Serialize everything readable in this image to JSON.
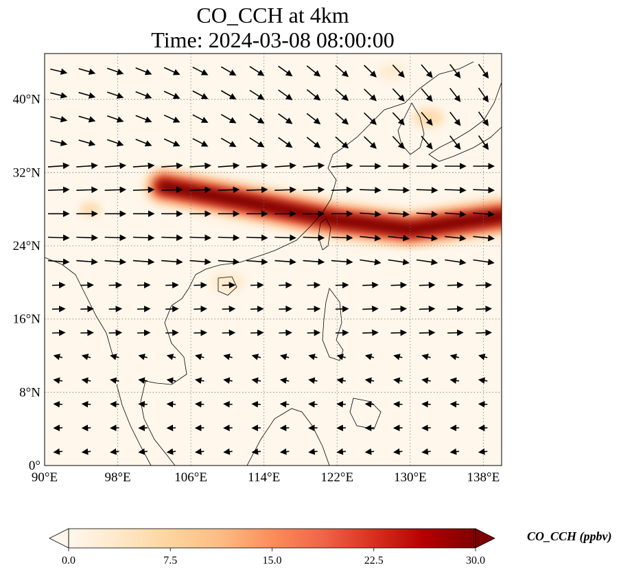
{
  "title": {
    "line1": "CO_CCH at 4km",
    "line2": "Time: 2024-03-08 08:00:00"
  },
  "map": {
    "lon_range": [
      90,
      140
    ],
    "lat_range": [
      0,
      45
    ],
    "lon_ticks": [
      {
        "value": 90,
        "label": "90°E"
      },
      {
        "value": 98,
        "label": "98°E"
      },
      {
        "value": 106,
        "label": "106°E"
      },
      {
        "value": 114,
        "label": "114°E"
      },
      {
        "value": 122,
        "label": "122°E"
      },
      {
        "value": 130,
        "label": "130°E"
      },
      {
        "value": 138,
        "label": "138°E"
      }
    ],
    "lat_ticks": [
      {
        "value": 0,
        "label": "0°"
      },
      {
        "value": 8,
        "label": "8°N"
      },
      {
        "value": 16,
        "label": "16°N"
      },
      {
        "value": 24,
        "label": "24°N"
      },
      {
        "value": 32,
        "label": "32°N"
      },
      {
        "value": 40,
        "label": "40°N"
      }
    ],
    "gridlines": "dotted",
    "plume": {
      "description_axis": [
        [
          103,
          30.5
        ],
        [
          112,
          28.8
        ],
        [
          122,
          26.8
        ],
        [
          130,
          25.8
        ],
        [
          140,
          27.2
        ]
      ],
      "peak_ppbv": 30
    }
  },
  "colorbar": {
    "label": "CO_CCH (ppbv)",
    "min": 0.0,
    "max": 30.0,
    "ticks": [
      "0.0",
      "7.5",
      "15.0",
      "22.5",
      "30.0"
    ],
    "colormap": "OrRd",
    "extend": "both",
    "colors": [
      "#fff7ec",
      "#fee8c8",
      "#fdd49e",
      "#fdbb84",
      "#fc8d59",
      "#ef6548",
      "#d7301f",
      "#b30000",
      "#7f0000"
    ]
  }
}
